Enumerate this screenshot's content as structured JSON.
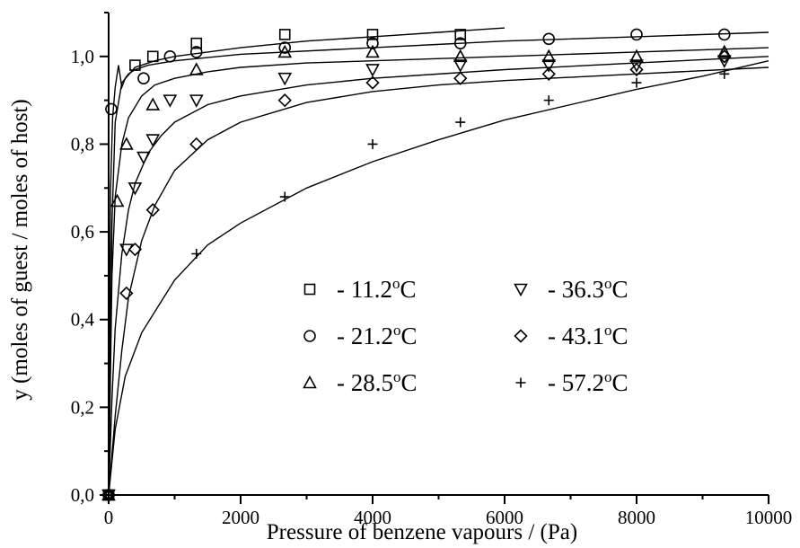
{
  "chart_data": {
    "type": "scatter",
    "title": "",
    "xlabel": "Pressure of benzene vapours / (Pa)",
    "ylabel": "y (moles of guest / moles of host)",
    "xlim": [
      0,
      10000
    ],
    "ylim": [
      0.0,
      1.1
    ],
    "x_ticks": [
      0,
      2000,
      4000,
      6000,
      8000,
      10000
    ],
    "x_tick_labels": [
      "0",
      "2000",
      "4000",
      "6000",
      "8000",
      "10000"
    ],
    "y_ticks": [
      0.0,
      0.2,
      0.4,
      0.6,
      0.8,
      1.0
    ],
    "y_tick_labels": [
      "0,0",
      "0,2",
      "0,4",
      "0,6",
      "0,8",
      "1,0"
    ],
    "grid": false,
    "legend_position": "center-right",
    "series": [
      {
        "name": "- 11.2°C",
        "label_main": "- 11.2",
        "label_unit": "C",
        "marker": "square",
        "x": [
          0,
          400,
          670,
          1330,
          2670,
          4000,
          5330
        ],
        "y": [
          0.0,
          0.98,
          1.0,
          1.03,
          1.05,
          1.05,
          1.05
        ],
        "fit": [
          [
            0,
            0
          ],
          [
            50,
            0.62
          ],
          [
            100,
            0.85
          ],
          [
            200,
            0.94
          ],
          [
            400,
            0.975
          ],
          [
            700,
            0.99
          ],
          [
            1000,
            1.0
          ],
          [
            2000,
            1.02
          ],
          [
            3000,
            1.035
          ],
          [
            4000,
            1.045
          ],
          [
            5000,
            1.055
          ],
          [
            6000,
            1.065
          ]
        ]
      },
      {
        "name": "- 21.2°C",
        "label_main": "- 21.2",
        "label_unit": "C",
        "marker": "circle",
        "x": [
          0,
          40,
          530,
          930,
          1330,
          2670,
          4000,
          5330,
          6670,
          8000,
          9330
        ],
        "y": [
          0.0,
          0.88,
          0.95,
          1.0,
          1.01,
          1.02,
          1.03,
          1.03,
          1.04,
          1.05,
          1.05
        ],
        "fit": [
          [
            0,
            0
          ],
          [
            30,
            0.7
          ],
          [
            60,
            0.86
          ],
          [
            100,
            0.93
          ],
          [
            150,
            0.98
          ],
          [
            200,
            0.93
          ],
          [
            250,
            0.95
          ],
          [
            300,
            0.96
          ],
          [
            400,
            0.97
          ],
          [
            600,
            0.98
          ],
          [
            1000,
            0.99
          ],
          [
            2000,
            1.005
          ],
          [
            4000,
            1.02
          ],
          [
            6000,
            1.035
          ],
          [
            8000,
            1.045
          ],
          [
            10000,
            1.055
          ]
        ]
      },
      {
        "name": "- 28.5°C",
        "label_main": "- 28.5",
        "label_unit": "C",
        "marker": "triangle-up",
        "x": [
          0,
          130,
          270,
          670,
          1330,
          2670,
          4000,
          5330,
          6670,
          8000,
          9330
        ],
        "y": [
          0.0,
          0.67,
          0.8,
          0.89,
          0.97,
          1.01,
          1.01,
          1.0,
          1.0,
          1.0,
          1.01
        ],
        "fit": [
          [
            0,
            0
          ],
          [
            50,
            0.5
          ],
          [
            100,
            0.68
          ],
          [
            200,
            0.8
          ],
          [
            300,
            0.86
          ],
          [
            500,
            0.91
          ],
          [
            700,
            0.935
          ],
          [
            1000,
            0.95
          ],
          [
            1500,
            0.965
          ],
          [
            2000,
            0.975
          ],
          [
            3000,
            0.985
          ],
          [
            4000,
            0.99
          ],
          [
            6000,
            1.0
          ],
          [
            8000,
            1.01
          ],
          [
            10000,
            1.02
          ]
        ]
      },
      {
        "name": "- 36.3°C",
        "label_main": "- 36.3",
        "label_unit": "C",
        "marker": "triangle-down",
        "x": [
          0,
          270,
          400,
          530,
          670,
          930,
          1330,
          2670,
          4000,
          5330,
          6670,
          8000,
          9330
        ],
        "y": [
          0.0,
          0.56,
          0.7,
          0.77,
          0.81,
          0.9,
          0.9,
          0.95,
          0.97,
          0.98,
          0.98,
          0.98,
          0.99
        ],
        "fit": [
          [
            0,
            0
          ],
          [
            50,
            0.22
          ],
          [
            100,
            0.38
          ],
          [
            200,
            0.55
          ],
          [
            300,
            0.65
          ],
          [
            400,
            0.71
          ],
          [
            600,
            0.78
          ],
          [
            800,
            0.82
          ],
          [
            1000,
            0.85
          ],
          [
            1500,
            0.89
          ],
          [
            2000,
            0.91
          ],
          [
            3000,
            0.935
          ],
          [
            4000,
            0.95
          ],
          [
            6000,
            0.97
          ],
          [
            8000,
            0.985
          ],
          [
            10000,
            1.0
          ]
        ]
      },
      {
        "name": "- 43.1°C",
        "label_main": "- 43.1",
        "label_unit": "C",
        "marker": "diamond",
        "x": [
          0,
          270,
          400,
          670,
          1330,
          2670,
          4000,
          5330,
          6670,
          8000,
          9330
        ],
        "y": [
          0.0,
          0.46,
          0.56,
          0.65,
          0.8,
          0.9,
          0.94,
          0.95,
          0.96,
          0.97,
          1.0
        ],
        "fit": [
          [
            0,
            0
          ],
          [
            100,
            0.18
          ],
          [
            200,
            0.33
          ],
          [
            300,
            0.45
          ],
          [
            500,
            0.58
          ],
          [
            700,
            0.66
          ],
          [
            1000,
            0.74
          ],
          [
            1500,
            0.81
          ],
          [
            2000,
            0.85
          ],
          [
            3000,
            0.895
          ],
          [
            4000,
            0.92
          ],
          [
            5000,
            0.935
          ],
          [
            6000,
            0.945
          ],
          [
            8000,
            0.96
          ],
          [
            10000,
            0.975
          ]
        ]
      },
      {
        "name": "- 57.2°C",
        "label_main": "- 57.2",
        "label_unit": "C",
        "marker": "plus",
        "x": [
          0,
          1330,
          2670,
          4000,
          5330,
          6670,
          8000,
          9330
        ],
        "y": [
          0.0,
          0.55,
          0.68,
          0.8,
          0.85,
          0.9,
          0.94,
          0.96
        ],
        "fit": [
          [
            0,
            0
          ],
          [
            100,
            0.15
          ],
          [
            250,
            0.27
          ],
          [
            500,
            0.37
          ],
          [
            750,
            0.43
          ],
          [
            1000,
            0.49
          ],
          [
            1500,
            0.57
          ],
          [
            2000,
            0.62
          ],
          [
            3000,
            0.7
          ],
          [
            4000,
            0.76
          ],
          [
            5000,
            0.81
          ],
          [
            6000,
            0.855
          ],
          [
            7000,
            0.89
          ],
          [
            8000,
            0.925
          ],
          [
            9000,
            0.955
          ],
          [
            10000,
            0.99
          ]
        ]
      }
    ]
  }
}
